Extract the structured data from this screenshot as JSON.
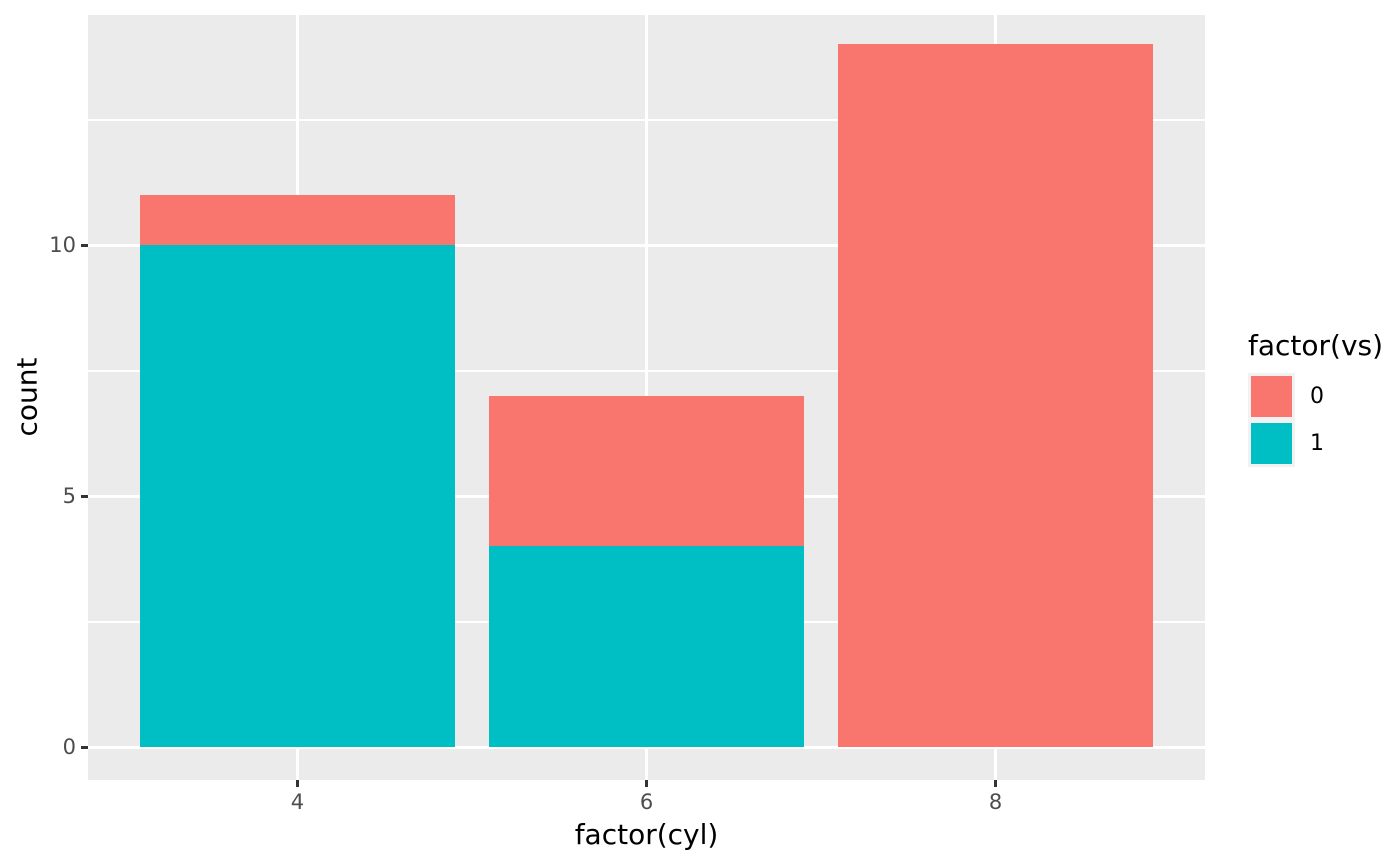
{
  "chart_data": {
    "type": "bar",
    "stacked": true,
    "title": "",
    "xlabel": "factor(cyl)",
    "ylabel": "count",
    "categories": [
      "4",
      "6",
      "8"
    ],
    "series": [
      {
        "name": "0",
        "color": "#F8766D",
        "values": [
          1,
          3,
          14
        ]
      },
      {
        "name": "1",
        "color": "#00BFC4",
        "values": [
          10,
          4,
          0
        ]
      }
    ],
    "stack_order": "first series on top",
    "stack_totals": [
      11,
      7,
      14
    ],
    "ylim": [
      0,
      14
    ],
    "y_major_ticks": [
      0,
      5,
      10
    ],
    "y_minor_gridlines": [
      2.5,
      7.5,
      12.5
    ],
    "grid": true,
    "legend": {
      "title": "factor(vs)",
      "position": "right"
    },
    "theme": {
      "panel_background": "#EBEBEB",
      "grid_color": "#FFFFFF",
      "figure_background": "#FFFFFF",
      "axis_text_color": "#4D4D4D",
      "axis_title_color": "#000000",
      "tick_mark_color": "#333333",
      "legend_key_background": "#F2F2F2"
    }
  }
}
